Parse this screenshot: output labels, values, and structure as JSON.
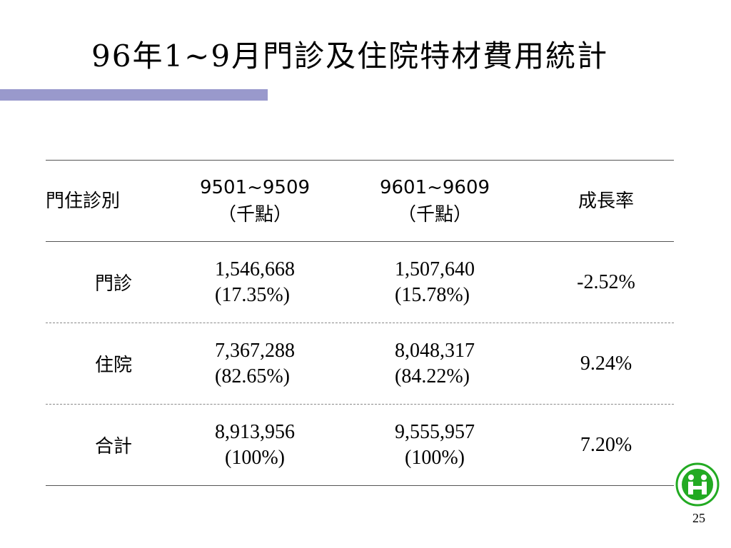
{
  "title": "96年1~9月門診及住院特材費用統計",
  "table": {
    "headers": {
      "category": "門住診別",
      "period1_line1": "9501~9509",
      "period1_line2": "（千點）",
      "period2_line1": "9601~9609",
      "period2_line2": "（千點）",
      "growth": "成長率"
    },
    "rows": [
      {
        "label": "門診",
        "v1": "1,546,668",
        "p1": "(17.35%)",
        "v2": "1,507,640",
        "p2": "(15.78%)",
        "growth": "-2.52%"
      },
      {
        "label": "住院",
        "v1": "7,367,288",
        "p1": "(82.65%)",
        "v2": "8,048,317",
        "p2": "(84.22%)",
        "growth": "9.24%"
      },
      {
        "label": "合計",
        "v1": "8,913,956",
        "p1": "(100%)",
        "v2": "9,555,957",
        "p2": "(100%)",
        "growth": "7.20%"
      }
    ]
  },
  "page_number": "25",
  "logo_icon": "bnhi-logo-icon",
  "colors": {
    "accent_bar": "#9999cc",
    "logo_green": "#22aa22"
  }
}
